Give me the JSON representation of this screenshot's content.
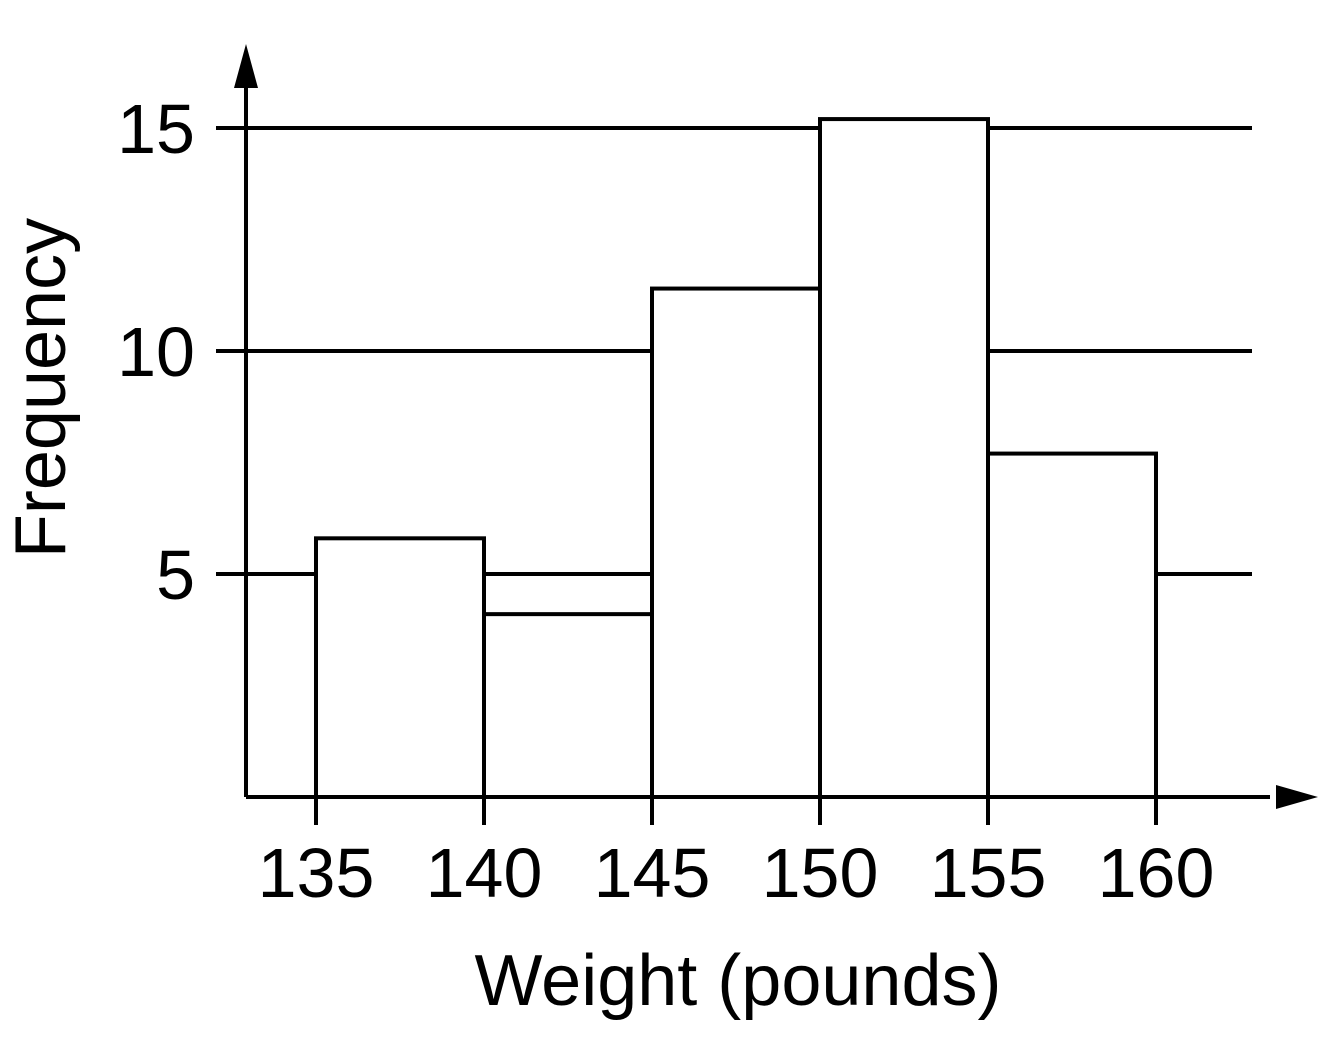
{
  "chart_data": {
    "type": "bar",
    "histogram": true,
    "bins": [
      {
        "from": 135,
        "to": 140,
        "value": 5.8
      },
      {
        "from": 140,
        "to": 145,
        "value": 4.1
      },
      {
        "from": 145,
        "to": 150,
        "value": 11.4
      },
      {
        "from": 150,
        "to": 155,
        "value": 15.2
      },
      {
        "from": 155,
        "to": 160,
        "value": 7.7
      }
    ],
    "x_ticks": [
      "135",
      "140",
      "145",
      "150",
      "155",
      "160"
    ],
    "y_ticks": [
      "5",
      "10",
      "15"
    ],
    "xlabel": "Weight (pounds)",
    "ylabel": "Frequency",
    "xlim": [
      131.5,
      162.5
    ],
    "ylim": [
      0,
      17
    ],
    "grid": true
  }
}
